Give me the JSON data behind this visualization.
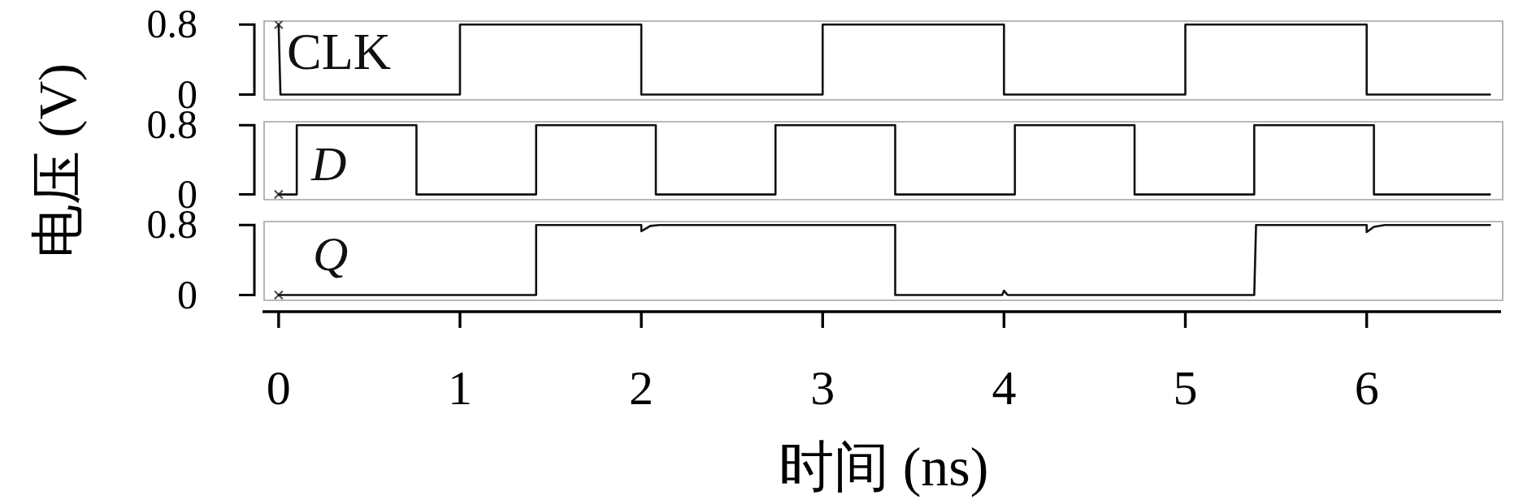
{
  "chart_data": [
    {
      "type": "line",
      "xlim": [
        -0.08,
        6.75
      ],
      "ylim": [
        -0.06,
        0.84
      ],
      "yticks": [
        0,
        0.8
      ],
      "tick_labels": "y",
      "series": [
        {
          "name": "CLK",
          "color": "#111111",
          "x": [
            0,
            0.01,
            1.0,
            1.0,
            2.0,
            2.0,
            3.0,
            3.0,
            4.0,
            4.0,
            5.0,
            5.0,
            6.0,
            6.0,
            6.68
          ],
          "values": [
            0.8,
            0,
            0,
            0.8,
            0.8,
            0,
            0,
            0.8,
            0.8,
            0,
            0,
            0.8,
            0.8,
            0,
            0
          ]
        },
        {
          "type": "scatter",
          "color": "#555555",
          "marker": "cross",
          "x": [
            0
          ],
          "values": [
            0.8
          ]
        }
      ]
    },
    {
      "type": "line",
      "ylabel": "电压 (V)",
      "xlim": [
        -0.08,
        6.75
      ],
      "ylim": [
        -0.06,
        0.84
      ],
      "yticks": [
        0,
        0.8
      ],
      "tick_labels": "y",
      "series": [
        {
          "name": "D",
          "color": "#111111",
          "x": [
            0,
            0.1,
            0.1,
            0.76,
            0.76,
            1.42,
            1.42,
            2.08,
            2.08,
            2.74,
            2.74,
            3.4,
            3.4,
            4.06,
            4.06,
            4.72,
            4.72,
            5.38,
            5.38,
            6.04,
            6.04,
            6.68
          ],
          "values": [
            0,
            0,
            0.8,
            0.8,
            0,
            0,
            0.8,
            0.8,
            0,
            0,
            0.8,
            0.8,
            0,
            0,
            0.8,
            0.8,
            0,
            0,
            0.8,
            0.8,
            0,
            0
          ]
        },
        {
          "type": "scatter",
          "color": "#555555",
          "marker": "cross",
          "x": [
            0
          ],
          "values": [
            0
          ]
        }
      ]
    },
    {
      "type": "line",
      "xlabel": "时间 (ns)",
      "xlim": [
        -0.08,
        6.75
      ],
      "xticks": [
        0,
        1,
        2,
        3,
        4,
        5,
        6
      ],
      "ylim": [
        -0.06,
        0.84
      ],
      "yticks": [
        0,
        0.8
      ],
      "series": [
        {
          "name": "Q",
          "color": "#111111",
          "x": [
            0,
            1.42,
            1.42,
            2.0,
            2.0,
            2.05,
            2.1,
            3.4,
            3.4,
            3.99,
            4.0,
            4.02,
            5.38,
            5.39,
            6.0,
            6.0,
            6.04,
            6.1,
            6.68
          ],
          "values": [
            0,
            0,
            0.8,
            0.8,
            0.73,
            0.79,
            0.8,
            0.8,
            0,
            0,
            0.05,
            0,
            0,
            0.8,
            0.8,
            0.72,
            0.78,
            0.8,
            0.8
          ]
        },
        {
          "type": "scatter",
          "color": "#555555",
          "marker": "cross",
          "x": [
            0
          ],
          "values": [
            0
          ]
        }
      ]
    }
  ]
}
